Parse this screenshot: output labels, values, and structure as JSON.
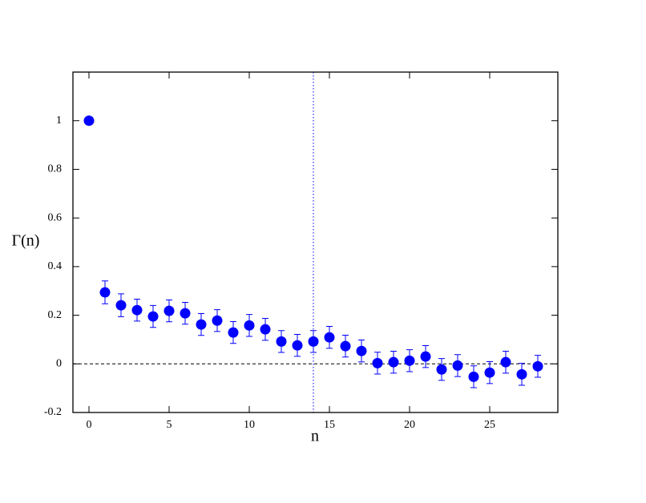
{
  "chart_data": {
    "type": "scatter",
    "x_label": "n",
    "y_label": "Γ(n)",
    "x": [
      0,
      1,
      2,
      3,
      4,
      5,
      6,
      7,
      8,
      9,
      10,
      11,
      12,
      13,
      14,
      15,
      16,
      17,
      18,
      19,
      20,
      21,
      22,
      23,
      24,
      25,
      26,
      27,
      28
    ],
    "series": [
      {
        "color": "#0000ff",
        "values": [
          1.0,
          0.294,
          0.241,
          0.221,
          0.195,
          0.218,
          0.208,
          0.162,
          0.178,
          0.129,
          0.158,
          0.142,
          0.092,
          0.076,
          0.092,
          0.109,
          0.073,
          0.053,
          0.003,
          0.007,
          0.013,
          0.03,
          -0.023,
          -0.007,
          -0.053,
          -0.036,
          0.007,
          -0.043,
          -0.01
        ],
        "errors": [
          0,
          0.047,
          0.047,
          0.045,
          0.045,
          0.045,
          0.045,
          0.045,
          0.045,
          0.045,
          0.045,
          0.045,
          0.045,
          0.045,
          0.045,
          0.045,
          0.045,
          0.045,
          0.045,
          0.045,
          0.045,
          0.045,
          0.045,
          0.045,
          0.045,
          0.045,
          0.045,
          0.045,
          0.045
        ]
      }
    ],
    "xlim": [
      -1,
      29.25
    ],
    "ylim": [
      -0.2,
      1.2
    ],
    "xticks": [
      0,
      5,
      10,
      15,
      20,
      25
    ],
    "yticks": [
      -0.2,
      0,
      0.2,
      0.4,
      0.6,
      0.8,
      1
    ],
    "hline": 0,
    "vline": 14
  }
}
